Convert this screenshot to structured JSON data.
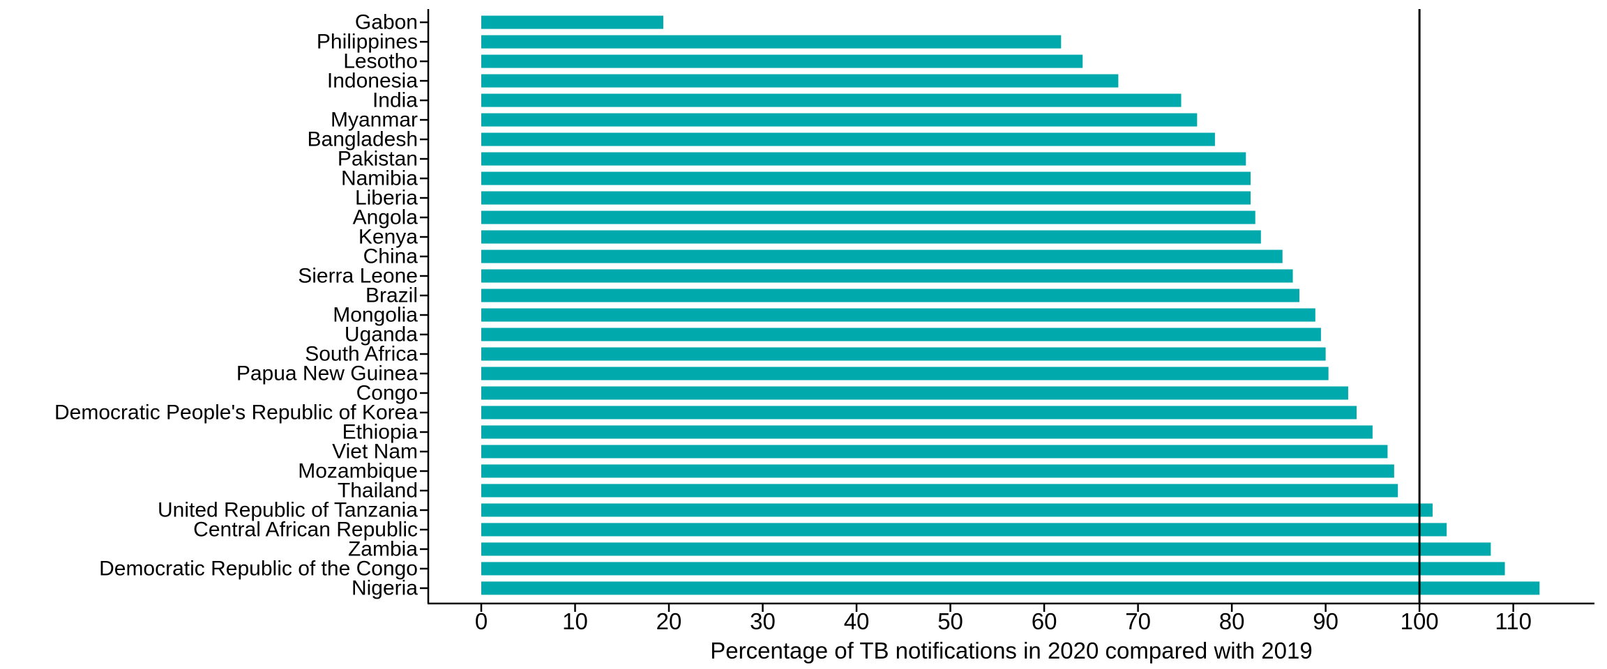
{
  "chart_data": {
    "type": "bar",
    "orientation": "horizontal",
    "title": "",
    "xlabel": "Percentage of TB notifications in 2020 compared with 2019",
    "ylabel": "",
    "categories": [
      "Gabon",
      "Philippines",
      "Lesotho",
      "Indonesia",
      "India",
      "Myanmar",
      "Bangladesh",
      "Pakistan",
      "Namibia",
      "Liberia",
      "Angola",
      "Kenya",
      "China",
      "Sierra Leone",
      "Brazil",
      "Mongolia",
      "Uganda",
      "South Africa",
      "Papua New Guinea",
      "Congo",
      "Democratic People's Republic of Korea",
      "Ethiopia",
      "Viet Nam",
      "Mozambique",
      "Thailand",
      "United Republic of Tanzania",
      "Central African Republic",
      "Zambia",
      "Democratic Republic of the Congo",
      "Nigeria"
    ],
    "values": [
      19.4,
      61.8,
      64.1,
      67.9,
      74.6,
      76.3,
      78.2,
      81.5,
      82.0,
      82.0,
      82.5,
      83.1,
      85.4,
      86.5,
      87.2,
      88.9,
      89.5,
      90.0,
      90.3,
      92.4,
      93.3,
      95.0,
      96.6,
      97.3,
      97.7,
      101.4,
      102.9,
      107.6,
      109.1,
      112.8
    ],
    "x_ticks": [
      0,
      10,
      20,
      30,
      40,
      50,
      60,
      70,
      80,
      90,
      100,
      110
    ],
    "xlim": [
      -5.65,
      118.65
    ],
    "reference_line_x": 100,
    "grid": false,
    "legend": null,
    "bar_color": "#00A9AC",
    "axis_color": "#000000",
    "text_color": "#000000",
    "background_color": "#FFFFFF"
  }
}
